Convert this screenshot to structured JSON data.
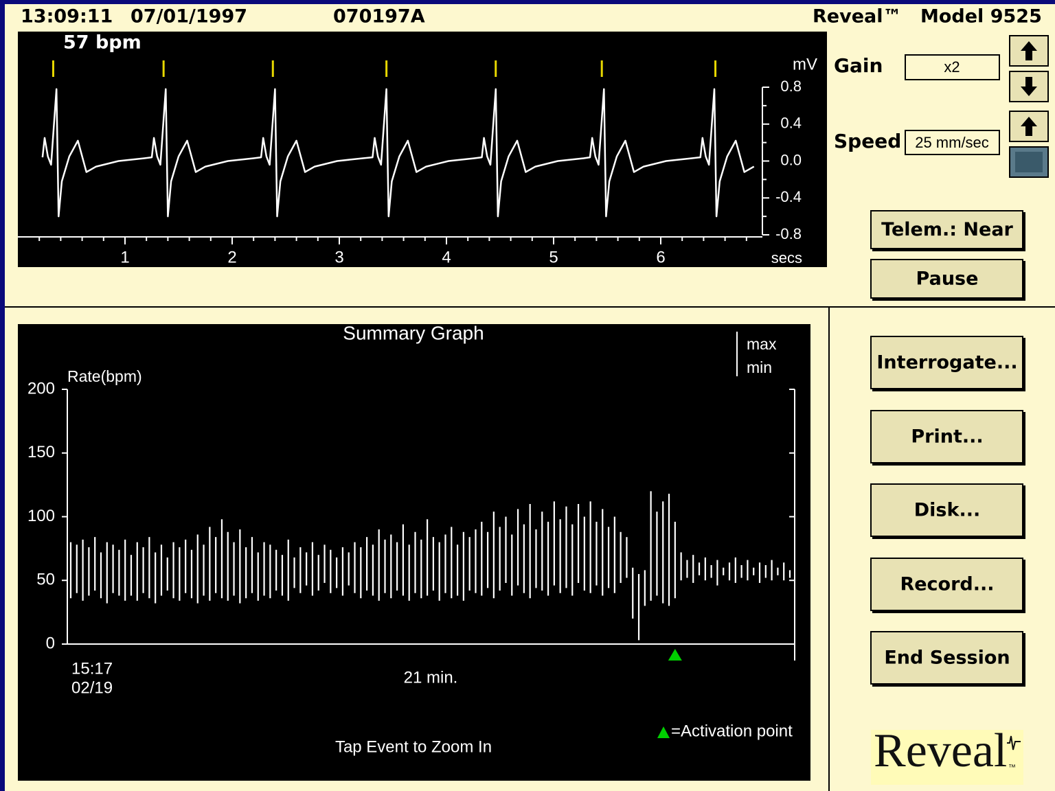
{
  "header": {
    "time": "13:09:11",
    "date": "07/01/1997",
    "patient_id": "070197A",
    "product": "Reveal™",
    "model": "Model 9525"
  },
  "ecg_strip": {
    "type": "line",
    "rate_label": "57 bpm",
    "y_unit": "mV",
    "x_unit": "secs",
    "color": "#ffffff",
    "marker_color": "#e8d800",
    "xlim": [
      0,
      7
    ],
    "xticks": [
      1,
      2,
      3,
      4,
      5,
      6
    ],
    "xticks_minor": [
      0.2,
      0.4,
      0.6,
      0.8,
      1.2,
      1.4,
      1.6,
      1.8,
      2.2,
      2.4,
      2.6,
      2.8,
      3.2,
      3.4,
      3.6,
      3.8,
      4.2,
      4.4,
      4.6,
      4.8,
      5.2,
      5.4,
      5.6,
      5.8,
      6.2,
      6.4,
      6.6,
      6.8
    ],
    "ylim": [
      -0.8,
      0.8
    ],
    "yticks": [
      -0.8,
      -0.4,
      {
        "value": 0,
        "label": "0.0"
      },
      0.4,
      0.8
    ],
    "yticks_minor": [
      -0.6,
      -0.2,
      0.2,
      0.6
    ],
    "beat_markers": [
      0.33,
      1.36,
      2.38,
      3.44,
      4.46,
      5.45,
      6.51
    ],
    "trace": {
      "x": [
        0.23,
        0.25,
        0.28,
        0.31,
        0.36,
        0.38,
        0.41,
        0.48,
        0.56,
        0.64,
        0.73,
        0.94,
        1.18,
        1.25,
        1.27,
        1.3,
        1.33,
        1.38,
        1.4,
        1.43,
        1.5,
        1.58,
        1.66,
        1.75,
        1.96,
        2.2,
        2.27,
        2.29,
        2.32,
        2.35,
        2.4,
        2.42,
        2.45,
        2.52,
        2.6,
        2.68,
        2.77,
        2.98,
        3.22,
        3.31,
        3.33,
        3.36,
        3.39,
        3.44,
        3.46,
        3.49,
        3.56,
        3.64,
        3.72,
        3.81,
        4.02,
        4.26,
        4.33,
        4.35,
        4.38,
        4.41,
        4.46,
        4.48,
        4.51,
        4.58,
        4.66,
        4.74,
        4.83,
        5.04,
        5.28,
        5.34,
        5.36,
        5.39,
        5.42,
        5.47,
        5.49,
        5.52,
        5.59,
        5.67,
        5.75,
        5.84,
        6.05,
        6.29,
        6.37,
        6.39,
        6.42,
        6.45,
        6.5,
        6.52,
        6.55,
        6.62,
        6.7,
        6.78,
        6.87
      ],
      "y": [
        0.04,
        0.25,
        0.05,
        -0.04,
        0.78,
        -0.6,
        -0.22,
        0.05,
        0.22,
        -0.12,
        -0.06,
        0.0,
        0.03,
        0.04,
        0.25,
        0.05,
        -0.04,
        0.78,
        -0.6,
        -0.22,
        0.05,
        0.22,
        -0.12,
        -0.06,
        0.0,
        0.03,
        0.04,
        0.25,
        0.05,
        -0.04,
        0.78,
        -0.6,
        -0.22,
        0.05,
        0.22,
        -0.12,
        -0.06,
        0.0,
        0.03,
        0.04,
        0.25,
        0.05,
        -0.04,
        0.78,
        -0.6,
        -0.22,
        0.05,
        0.22,
        -0.12,
        -0.06,
        0.0,
        0.03,
        0.04,
        0.25,
        0.05,
        -0.04,
        0.78,
        -0.6,
        -0.22,
        0.05,
        0.22,
        -0.12,
        -0.06,
        0.0,
        0.03,
        0.04,
        0.25,
        0.05,
        -0.04,
        0.78,
        -0.6,
        -0.22,
        0.05,
        0.22,
        -0.12,
        -0.06,
        0.0,
        0.03,
        0.04,
        0.25,
        0.05,
        -0.04,
        0.78,
        -0.6,
        -0.22,
        0.05,
        0.22,
        -0.12,
        -0.06
      ]
    }
  },
  "controls": {
    "gain_label": "Gain",
    "gain_value": "x2",
    "speed_label": "Speed",
    "speed_value": "25 mm/sec"
  },
  "buttons": [
    "Telem.: Near",
    "Pause",
    "Interrogate...",
    "Print...",
    "Disk...",
    "Record...",
    "End Session"
  ],
  "summary_graph": {
    "type": "bar",
    "title": "Summary Graph",
    "y_label": "Rate(bpm)",
    "ylim": [
      0,
      200
    ],
    "yticks": [
      0,
      50,
      100,
      150,
      200
    ],
    "color": "#ffffff",
    "start_time": "15:17",
    "start_date": "02/19",
    "duration_label": "21 min.",
    "series": [
      {
        "name": "max",
        "values": [
          80,
          78,
          82,
          76,
          84,
          72,
          80,
          78,
          74,
          82,
          70,
          80,
          76,
          84,
          72,
          78,
          68,
          80,
          76,
          82,
          74,
          86,
          78,
          92,
          84,
          98,
          88,
          80,
          90,
          76,
          84,
          72,
          80,
          78,
          74,
          70,
          82,
          68,
          76,
          72,
          80,
          70,
          78,
          74,
          68,
          76,
          72,
          80,
          76,
          84,
          78,
          90,
          82,
          86,
          80,
          94,
          78,
          88,
          82,
          98,
          84,
          80,
          86,
          92,
          78,
          88,
          84,
          90,
          96,
          88,
          104,
          92,
          100,
          86,
          106,
          94,
          110,
          90,
          104,
          96,
          112,
          98,
          108,
          94,
          110,
          100,
          112,
          96,
          106,
          92,
          100,
          88,
          84,
          60,
          55,
          58,
          120,
          104,
          112,
          118,
          96,
          72,
          66,
          70,
          64,
          68,
          62,
          66,
          60,
          64,
          68,
          62,
          66,
          60,
          64,
          62,
          66,
          60,
          64,
          58
        ]
      },
      {
        "name": "min",
        "values": [
          36,
          40,
          34,
          38,
          42,
          36,
          32,
          40,
          38,
          34,
          38,
          34,
          40,
          36,
          32,
          38,
          42,
          36,
          34,
          40,
          36,
          32,
          38,
          34,
          40,
          36,
          34,
          38,
          32,
          36,
          40,
          34,
          38,
          36,
          42,
          38,
          34,
          44,
          40,
          46,
          38,
          42,
          48,
          40,
          44,
          38,
          46,
          40,
          36,
          42,
          38,
          34,
          40,
          36,
          42,
          38,
          34,
          40,
          36,
          38,
          42,
          34,
          40,
          36,
          38,
          34,
          42,
          40,
          38,
          44,
          36,
          42,
          48,
          38,
          46,
          40,
          36,
          44,
          42,
          38,
          46,
          40,
          44,
          38,
          48,
          42,
          40,
          46,
          38,
          44,
          40,
          48,
          52,
          20,
          3,
          30,
          34,
          38,
          32,
          30,
          36,
          50,
          52,
          48,
          54,
          50,
          52,
          46,
          54,
          50,
          48,
          52,
          50,
          54,
          48,
          52,
          50,
          54,
          50,
          52
        ]
      }
    ],
    "activation_point": 100,
    "activation_color": "#00d000",
    "activation_legend": "=Activation point",
    "hint": "Tap Event to Zoom In"
  },
  "logo": {
    "text": "Reveal",
    "mark": "™"
  }
}
